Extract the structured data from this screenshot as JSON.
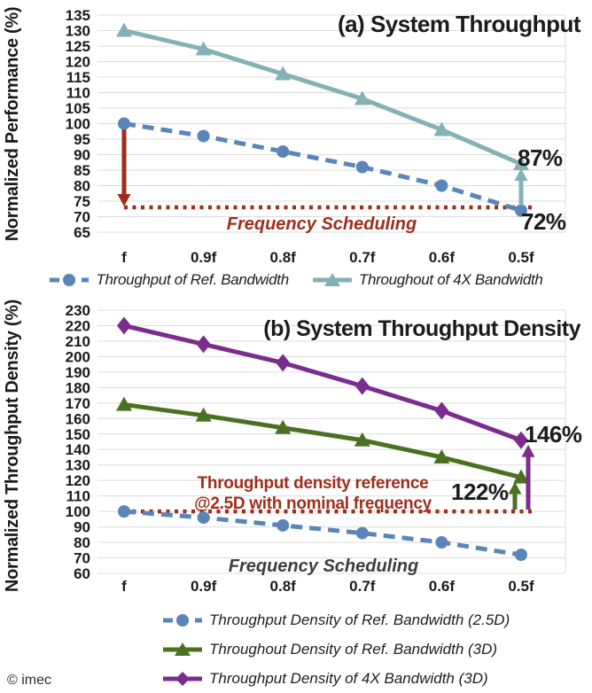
{
  "page": {
    "copyright": "© imec",
    "background": "#ffffff"
  },
  "colors": {
    "ref_bandwidth_blue": "#5b85b9",
    "bandwidth_4x_teal": "#84b1b5",
    "reference_dark_red": "#9e2d1c",
    "ref_3d_green": "#4c7022",
    "bandwidth_4x_purple": "#7b2c8c",
    "grid_gray": "#dcdcdc",
    "text_black": "#1b1b1b",
    "freq_gray": "#3d3d3d"
  },
  "chart_data": [
    {
      "id": "a",
      "type": "line",
      "title": "(a) System Throughput",
      "ylabel": "Normalized Performance (%)",
      "xlabel": "",
      "categories": [
        "f",
        "0.9f",
        "0.8f",
        "0.7f",
        "0.6f",
        "0.5f"
      ],
      "ylim": [
        65,
        135
      ],
      "ytick_step": 5,
      "grid": true,
      "legend_position": "bottom",
      "series": [
        {
          "name": "Throughput of Ref. Bandwidth",
          "marker": "circle",
          "line": "dashed",
          "color": "#5b85b9",
          "values": [
            100,
            96,
            91,
            86,
            80,
            72
          ]
        },
        {
          "name": "Throughout of 4X Bandwidth",
          "marker": "triangle",
          "line": "solid",
          "color": "#84b1b5",
          "values": [
            130,
            124,
            116,
            108,
            98,
            87
          ]
        }
      ],
      "annotations": {
        "reference_line": {
          "value": 73,
          "color": "#9e2d1c",
          "style": "dotted"
        },
        "arrows": [
          {
            "at": "f",
            "from": 100,
            "to": 73,
            "direction": "down",
            "color": "#9e2d1c",
            "x_offset": 0
          },
          {
            "at": "0.5f",
            "from": 73,
            "to": 87,
            "direction": "up",
            "color": "#84b1b5",
            "x_offset": 0
          }
        ],
        "freq_label": "Frequency Scheduling",
        "end_labels": [
          {
            "text": "87%"
          },
          {
            "text": "72%"
          }
        ]
      }
    },
    {
      "id": "b",
      "type": "line",
      "title": "(b) System Throughput Density",
      "ylabel": "Normalized Throughput Density (%)",
      "xlabel": "",
      "categories": [
        "f",
        "0.9f",
        "0.8f",
        "0.7f",
        "0.6f",
        "0.5f"
      ],
      "ylim": [
        60,
        230
      ],
      "ytick_step": 10,
      "grid": true,
      "legend_position": "bottom",
      "series": [
        {
          "name": "Throughput Density of Ref. Bandwidth (2.5D)",
          "marker": "circle",
          "line": "dashed",
          "color": "#5b85b9",
          "values": [
            100,
            96,
            91,
            86,
            80,
            72
          ]
        },
        {
          "name": "Throughout Density of Ref. Bandwidth (3D)",
          "marker": "triangle",
          "line": "solid",
          "color": "#4c7022",
          "values": [
            169,
            162,
            154,
            146,
            135,
            122
          ]
        },
        {
          "name": "Throughput Density of 4X Bandwidth (3D)",
          "marker": "diamond",
          "line": "solid",
          "color": "#7b2c8c",
          "values": [
            220,
            208,
            196,
            181,
            165,
            146
          ]
        }
      ],
      "annotations": {
        "reference_line": {
          "value": 100,
          "color": "#9e2d1c",
          "style": "dotted"
        },
        "reference_text": [
          "Throughput density reference",
          "@2.5D with nominal frequency"
        ],
        "arrows": [
          {
            "at": "0.5f",
            "from": 100,
            "to": 122,
            "direction": "up",
            "color": "#4c7022",
            "x_offset": -7
          },
          {
            "at": "0.5f",
            "from": 100,
            "to": 146,
            "direction": "up",
            "color": "#7b2c8c",
            "x_offset": 8
          }
        ],
        "freq_label": "Frequency Scheduling",
        "end_labels": [
          {
            "text": "146%"
          },
          {
            "text": "122%"
          }
        ]
      }
    }
  ]
}
